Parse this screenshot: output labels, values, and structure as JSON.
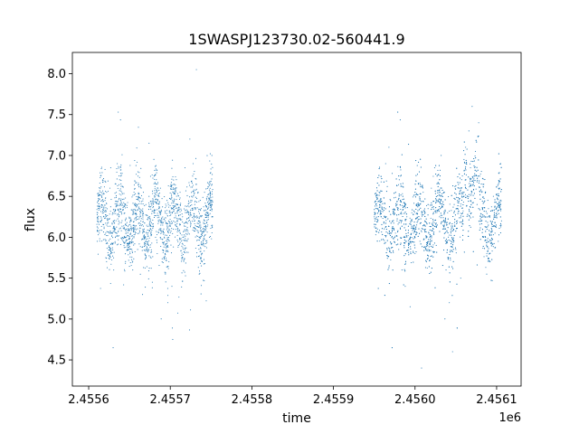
{
  "chart_data": {
    "type": "scatter",
    "title": "1SWASPJ123730.02-560441.9",
    "xlabel": "time",
    "ylabel": "flux",
    "x_offset_label": "1e6",
    "xlim": [
      2.45558,
      2.45613
    ],
    "ylim": [
      4.18,
      8.26
    ],
    "grid": false,
    "point_color": "#1f77b4",
    "x_ticks": [
      {
        "value": 2.4556,
        "label": "2.4556"
      },
      {
        "value": 2.4557,
        "label": "2.4557"
      },
      {
        "value": 2.4558,
        "label": "2.4558"
      },
      {
        "value": 2.4559,
        "label": "2.4559"
      },
      {
        "value": 2.456,
        "label": "2.4560"
      },
      {
        "value": 2.4561,
        "label": "2.4561"
      }
    ],
    "y_ticks": [
      {
        "value": 4.5,
        "label": "4.5"
      },
      {
        "value": 5.0,
        "label": "5.0"
      },
      {
        "value": 5.5,
        "label": "5.5"
      },
      {
        "value": 6.0,
        "label": "6.0"
      },
      {
        "value": 6.5,
        "label": "6.5"
      },
      {
        "value": 7.0,
        "label": "7.0"
      },
      {
        "value": 7.5,
        "label": "7.5"
      },
      {
        "value": 8.0,
        "label": "8.0"
      }
    ],
    "series": [
      {
        "x_range": [
          2.45561,
          2.455752
        ],
        "points": [
          [
            2.455612,
            6.38
          ],
          [
            2.455613,
            6.05
          ],
          [
            2.455614,
            6.52
          ],
          [
            2.455616,
            6.21
          ],
          [
            2.455617,
            6.7
          ],
          [
            2.455618,
            6.3
          ],
          [
            2.45562,
            6.45
          ],
          [
            2.455621,
            5.75
          ],
          [
            2.455622,
            6.55
          ],
          [
            2.455624,
            6.18
          ],
          [
            2.455626,
            6.6
          ],
          [
            2.455627,
            6.85
          ],
          [
            2.455629,
            6.28
          ],
          [
            2.455631,
            6.12
          ],
          [
            2.455633,
            6.44
          ],
          [
            2.455635,
            6.9
          ],
          [
            2.455637,
            6.25
          ],
          [
            2.45564,
            6.08
          ],
          [
            2.455642,
            6.33
          ],
          [
            2.455645,
            6.48
          ],
          [
            2.455648,
            6.02
          ],
          [
            2.45565,
            5.92
          ],
          [
            2.455652,
            6.2
          ],
          [
            2.455654,
            5.6
          ],
          [
            2.455656,
            6.4
          ],
          [
            2.455658,
            6.14
          ],
          [
            2.45566,
            5.85
          ],
          [
            2.455662,
            6.05
          ],
          [
            2.455664,
            6.3
          ],
          [
            2.455666,
            5.3
          ],
          [
            2.455667,
            6.55
          ],
          [
            2.455668,
            6.1
          ],
          [
            2.45567,
            5.95
          ],
          [
            2.455672,
            6.22
          ],
          [
            2.455674,
            7.15
          ],
          [
            2.455676,
            6.05
          ],
          [
            2.455678,
            5.45
          ],
          [
            2.45568,
            6.3
          ],
          [
            2.455682,
            6.0
          ],
          [
            2.455684,
            5.8
          ],
          [
            2.455686,
            6.35
          ],
          [
            2.455688,
            6.6
          ],
          [
            2.45569,
            5.7
          ],
          [
            2.455692,
            6.1
          ],
          [
            2.455694,
            5.55
          ],
          [
            2.455696,
            6.45
          ],
          [
            2.455697,
            5.2
          ],
          [
            2.455698,
            6.0
          ],
          [
            2.4557,
            6.3
          ],
          [
            2.455702,
            5.4
          ],
          [
            2.455703,
            4.75
          ],
          [
            2.455704,
            6.7
          ],
          [
            2.455706,
            6.15
          ],
          [
            2.455708,
            6.4
          ],
          [
            2.45571,
            5.9
          ],
          [
            2.455712,
            6.55
          ],
          [
            2.455715,
            6.25
          ],
          [
            2.455718,
            6.85
          ],
          [
            2.45572,
            6.3
          ],
          [
            2.455722,
            6.05
          ],
          [
            2.455724,
            7.2
          ],
          [
            2.455726,
            6.5
          ],
          [
            2.455728,
            6.9
          ],
          [
            2.45573,
            6.4
          ],
          [
            2.455732,
            8.05
          ],
          [
            2.455735,
            6.2
          ],
          [
            2.455738,
            6.35
          ],
          [
            2.45574,
            6.1
          ],
          [
            2.455742,
            6.55
          ],
          [
            2.455745,
            6.3
          ],
          [
            2.455748,
            6.0
          ],
          [
            2.45575,
            6.45
          ],
          [
            2.455751,
            7.0
          ],
          [
            2.455752,
            6.25
          ]
        ]
      },
      {
        "x_range": [
          2.45595,
          2.456106
        ],
        "points": [
          [
            2.45595,
            6.25
          ],
          [
            2.455952,
            6.4
          ],
          [
            2.455954,
            6.1
          ],
          [
            2.455956,
            6.55
          ],
          [
            2.455958,
            6.3
          ],
          [
            2.455962,
            6.48
          ],
          [
            2.455964,
            6.9
          ],
          [
            2.455966,
            6.62
          ],
          [
            2.455968,
            7.1
          ],
          [
            2.45597,
            6.45
          ],
          [
            2.455972,
            6.78
          ],
          [
            2.455974,
            6.3
          ],
          [
            2.455976,
            6.05
          ],
          [
            2.455978,
            6.2
          ],
          [
            2.45598,
            5.85
          ],
          [
            2.455982,
            6.1
          ],
          [
            2.455984,
            5.6
          ],
          [
            2.455986,
            6.0
          ],
          [
            2.455988,
            5.4
          ],
          [
            2.45599,
            6.25
          ],
          [
            2.455992,
            5.9
          ],
          [
            2.455994,
            5.15
          ],
          [
            2.455996,
            6.3
          ],
          [
            2.455998,
            6.05
          ],
          [
            2.456,
            5.8
          ],
          [
            2.456002,
            6.15
          ],
          [
            2.456004,
            6.4
          ],
          [
            2.456006,
            5.95
          ],
          [
            2.456008,
            4.4
          ],
          [
            2.45601,
            6.55
          ],
          [
            2.456012,
            6.2
          ],
          [
            2.456014,
            5.7
          ],
          [
            2.456016,
            6.35
          ],
          [
            2.456018,
            6.0
          ],
          [
            2.45602,
            6.6
          ],
          [
            2.456022,
            6.15
          ],
          [
            2.456024,
            6.85
          ],
          [
            2.456026,
            5.9
          ],
          [
            2.456028,
            6.45
          ],
          [
            2.45603,
            6.25
          ],
          [
            2.456032,
            7.0
          ],
          [
            2.456034,
            6.1
          ],
          [
            2.456036,
            6.55
          ],
          [
            2.456038,
            5.6
          ],
          [
            2.45604,
            6.3
          ],
          [
            2.456042,
            5.2
          ],
          [
            2.456044,
            6.05
          ],
          [
            2.456046,
            4.6
          ],
          [
            2.456048,
            6.4
          ],
          [
            2.45605,
            5.85
          ],
          [
            2.456052,
            6.2
          ],
          [
            2.456054,
            6.6
          ],
          [
            2.456056,
            5.5
          ],
          [
            2.456058,
            6.75
          ],
          [
            2.45606,
            6.95
          ],
          [
            2.456062,
            7.1
          ],
          [
            2.456064,
            6.5
          ],
          [
            2.456066,
            7.3
          ],
          [
            2.456068,
            6.85
          ],
          [
            2.45607,
            7.6
          ],
          [
            2.456072,
            6.7
          ],
          [
            2.456074,
            7.05
          ],
          [
            2.456076,
            6.4
          ],
          [
            2.456078,
            7.4
          ],
          [
            2.45608,
            6.2
          ],
          [
            2.456082,
            6.55
          ],
          [
            2.456084,
            6.0
          ],
          [
            2.456086,
            6.25
          ],
          [
            2.456088,
            5.8
          ],
          [
            2.45609,
            6.35
          ],
          [
            2.456092,
            5.7
          ],
          [
            2.456094,
            6.1
          ],
          [
            2.456096,
            6.5
          ],
          [
            2.456098,
            6.05
          ],
          [
            2.4561,
            6.3
          ],
          [
            2.456102,
            5.95
          ],
          [
            2.456104,
            6.6
          ],
          [
            2.456105,
            6.9
          ],
          [
            2.456106,
            6.2
          ]
        ]
      }
    ]
  }
}
